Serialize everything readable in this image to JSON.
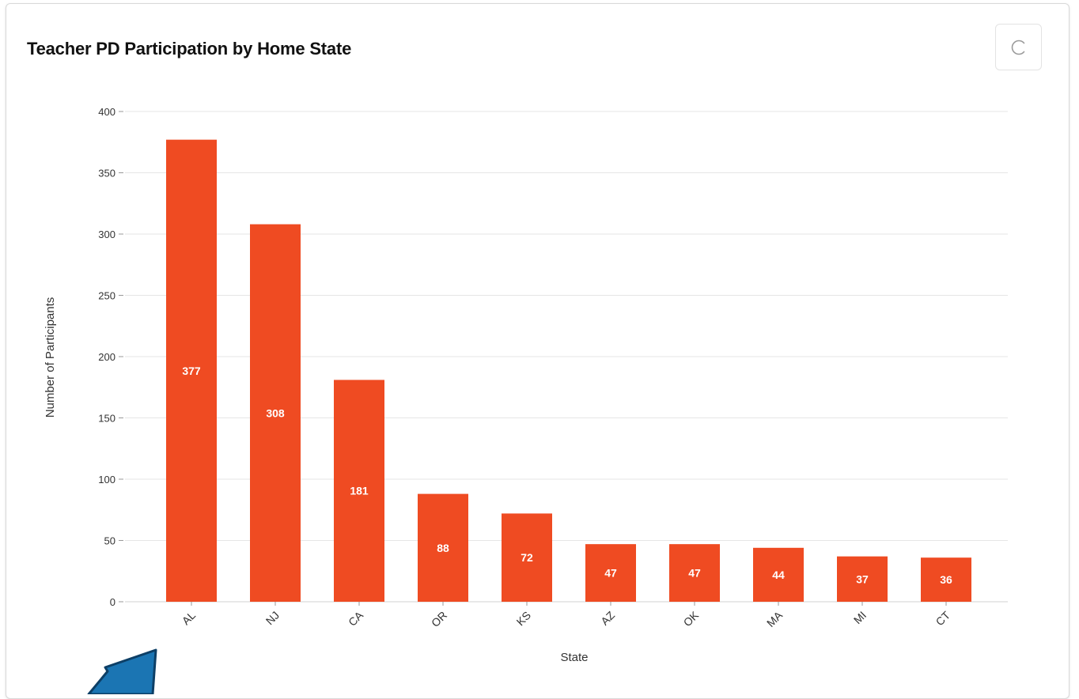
{
  "card": {
    "title": "Teacher PD Participation by Home State"
  },
  "toolbar": {
    "refresh_icon": "refresh-icon"
  },
  "colors": {
    "bar": "#ef4b22",
    "grid": "#e6e6e6",
    "axis_text": "#333333",
    "cursor": "#1b75b3"
  },
  "chart_data": {
    "type": "bar",
    "title": "Teacher PD Participation by Home State",
    "xlabel": "State",
    "ylabel": "Number of Participants",
    "categories": [
      "AL",
      "NJ",
      "CA",
      "OR",
      "KS",
      "AZ",
      "OK",
      "MA",
      "MI",
      "CT"
    ],
    "values": [
      377,
      308,
      181,
      88,
      72,
      47,
      47,
      44,
      37,
      36
    ],
    "data_labels": [
      "377",
      "308",
      "181",
      "88",
      "72",
      "47",
      "47",
      "44",
      "37",
      "36"
    ],
    "ylim": [
      0,
      400
    ],
    "yticks": [
      0,
      50,
      100,
      150,
      200,
      250,
      300,
      350,
      400
    ],
    "grid": true,
    "legend": "none"
  }
}
